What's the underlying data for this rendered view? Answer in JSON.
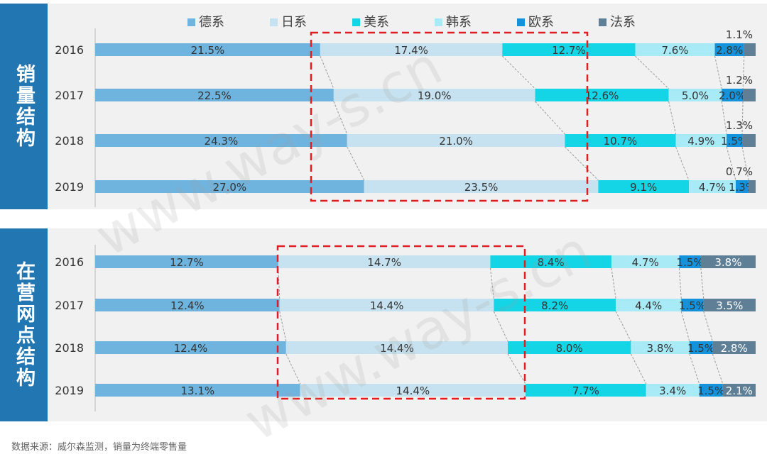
{
  "footnote": "数据来源：威尔森监测，销量为终端零售量",
  "watermark": "www.way-s.cn",
  "colors": {
    "德系": "#6fb4de",
    "日系": "#c6e2f0",
    "美系": "#13d5e6",
    "韩系": "#a8ebf7",
    "欧系": "#1493dc",
    "法系": "#5f7f97",
    "highlight": "#e02020"
  },
  "chart_data": [
    {
      "type": "bar",
      "stacked": true,
      "orientation": "horizontal",
      "title": "销量结构",
      "categories": [
        "2016",
        "2017",
        "2018",
        "2019"
      ],
      "legend_position": "top",
      "series": [
        {
          "name": "德系",
          "values": [
            21.5,
            22.5,
            24.3,
            27.0
          ],
          "labels": [
            "21.5%",
            "22.5%",
            "24.3%",
            "27.0%"
          ]
        },
        {
          "name": "日系",
          "values": [
            17.4,
            19.0,
            21.0,
            23.5
          ],
          "labels": [
            "17.4%",
            "19.0%",
            "21.0%",
            "23.5%"
          ]
        },
        {
          "name": "美系",
          "values": [
            12.7,
            12.6,
            10.7,
            9.1
          ],
          "labels": [
            "12.7%",
            "12.6%",
            "10.7%",
            "9.1%"
          ]
        },
        {
          "name": "韩系",
          "values": [
            7.6,
            5.0,
            4.9,
            4.7
          ],
          "labels": [
            "7.6%",
            "5.0%",
            "4.9%",
            "4.7%"
          ]
        },
        {
          "name": "欧系",
          "values": [
            2.8,
            2.0,
            1.5,
            1.3
          ],
          "labels": [
            "2.8%",
            "2.0%",
            "1.5%",
            "1.3%"
          ]
        },
        {
          "name": "法系",
          "values": [
            1.1,
            1.2,
            1.3,
            0.7
          ],
          "labels": [
            "1.1%",
            "1.2%",
            "1.3%",
            "0.7%"
          ]
        }
      ]
    },
    {
      "type": "bar",
      "stacked": true,
      "orientation": "horizontal",
      "title": "在营网点结构",
      "categories": [
        "2016",
        "2017",
        "2018",
        "2019"
      ],
      "series": [
        {
          "name": "德系",
          "values": [
            12.7,
            12.4,
            12.4,
            13.1
          ],
          "labels": [
            "12.7%",
            "12.4%",
            "12.4%",
            "13.1%"
          ]
        },
        {
          "name": "日系",
          "values": [
            14.7,
            14.4,
            14.4,
            14.4
          ],
          "labels": [
            "14.7%",
            "14.4%",
            "14.4%",
            "14.4%"
          ]
        },
        {
          "name": "美系",
          "values": [
            8.4,
            8.2,
            8.0,
            7.7
          ],
          "labels": [
            "8.4%",
            "8.2%",
            "8.0%",
            "7.7%"
          ]
        },
        {
          "name": "韩系",
          "values": [
            4.7,
            4.4,
            3.8,
            3.4
          ],
          "labels": [
            "4.7%",
            "4.4%",
            "3.8%",
            "3.4%"
          ]
        },
        {
          "name": "欧系",
          "values": [
            1.5,
            1.5,
            1.5,
            1.5
          ],
          "labels": [
            "1.5%",
            "1.5%",
            "1.5%",
            "1.5%"
          ]
        },
        {
          "name": "法系",
          "values": [
            3.8,
            3.5,
            2.8,
            2.1
          ],
          "labels": [
            "3.8%",
            "3.5%",
            "2.8%",
            "2.1%"
          ]
        }
      ]
    }
  ]
}
